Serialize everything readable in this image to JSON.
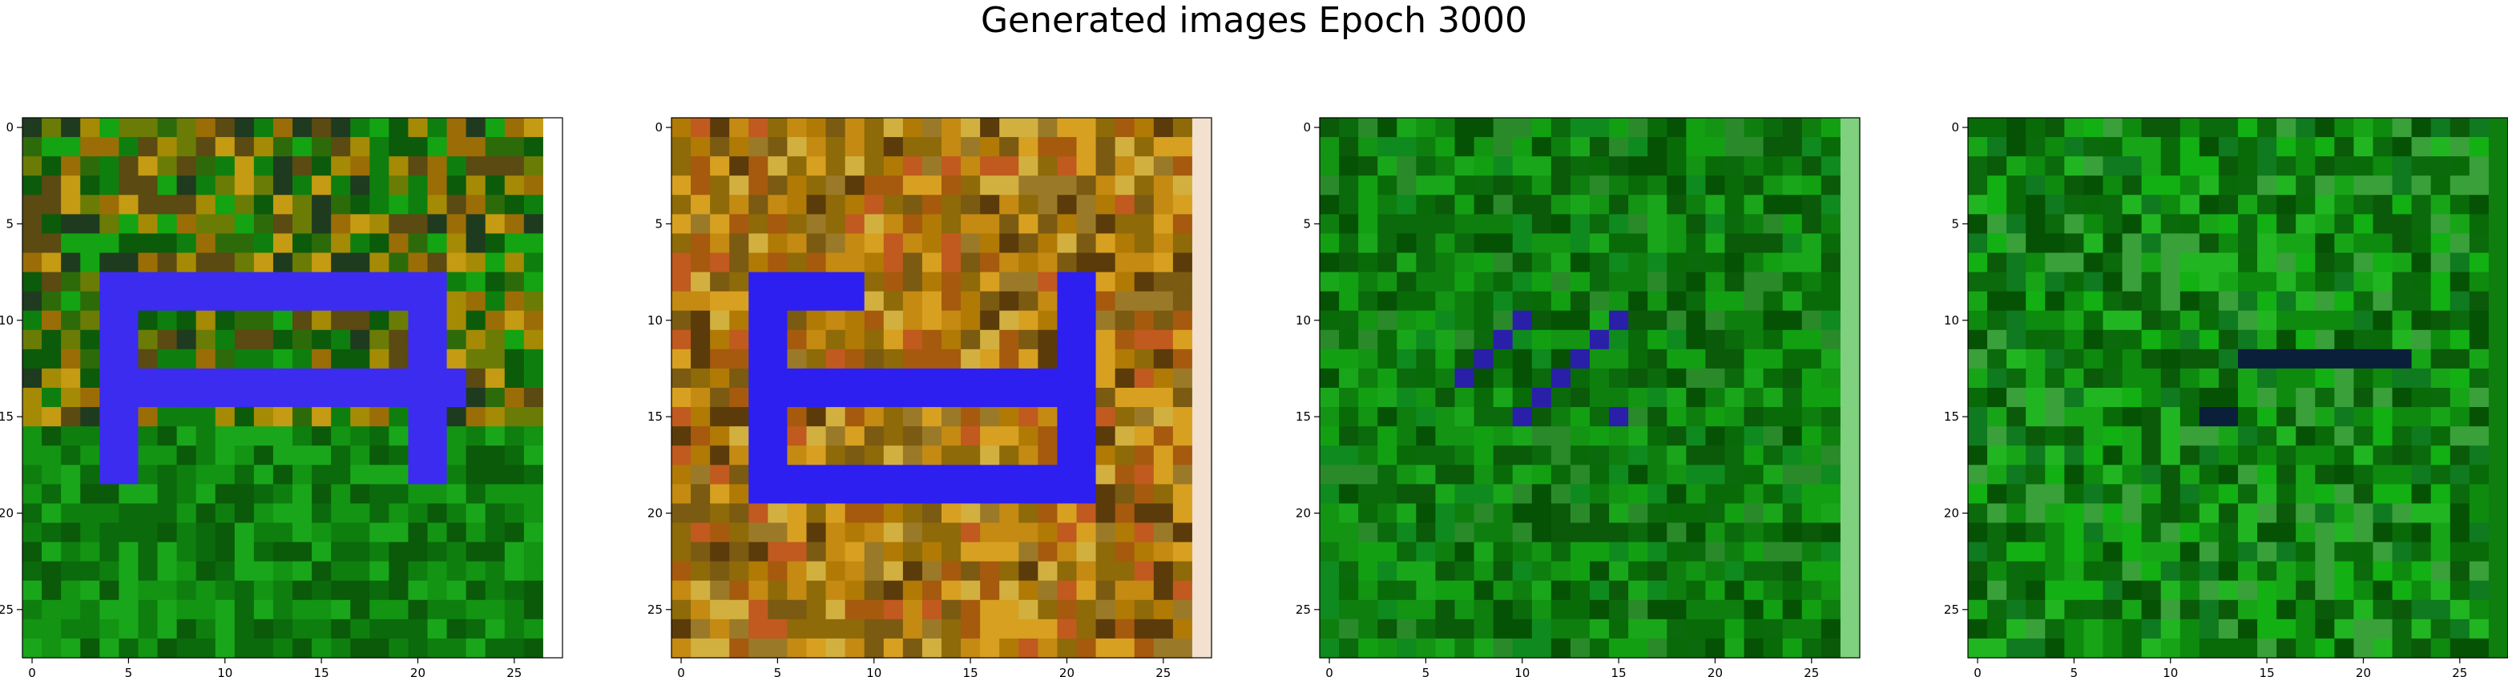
{
  "figure": {
    "title": "Generated images Epoch 3000"
  },
  "chart_data": [
    {
      "type": "heatmap",
      "grid_size": [
        28,
        28
      ],
      "xlim": [
        -0.5,
        27.5
      ],
      "ylim": [
        27.5,
        -0.5
      ],
      "x_ticks": [
        0,
        5,
        10,
        15,
        20,
        25
      ],
      "y_ticks": [
        0,
        5,
        10,
        15,
        20,
        25
      ],
      "palette": [
        "#0e7f0e",
        "#2d6b0a",
        "#6a7c05",
        "#a58a05",
        "#9b6d06",
        "#c49b12",
        "#5b4a12",
        "#1f3b1f",
        "#13a313",
        "#0b5b0b"
      ],
      "accent_color": "#3b2cf0",
      "right_column_color": "#ffffff",
      "motif": "blue ring on upper-left with olive/orange speckle, green lower half"
    },
    {
      "type": "heatmap",
      "grid_size": [
        28,
        28
      ],
      "xlim": [
        -0.5,
        27.5
      ],
      "ylim": [
        27.5,
        -0.5
      ],
      "x_ticks": [
        0,
        5,
        10,
        15,
        20,
        25
      ],
      "y_ticks": [
        0,
        5,
        10,
        15,
        20,
        25
      ],
      "palette": [
        "#b07a05",
        "#c48a12",
        "#8e6a08",
        "#d8a020",
        "#a65a0e",
        "#7b5a12",
        "#c05a1f",
        "#5b3b0a",
        "#d2b040",
        "#9a7a28"
      ],
      "accent_color": "#2c1ff0",
      "right_column_color": "#f3e0cf",
      "motif": "blue rectangular ring on orange/brown speckle"
    },
    {
      "type": "heatmap",
      "grid_size": [
        28,
        28
      ],
      "xlim": [
        -0.5,
        27.5
      ],
      "ylim": [
        27.5,
        -0.5
      ],
      "x_ticks": [
        0,
        5,
        10,
        15,
        20,
        25
      ],
      "y_ticks": [
        0,
        5,
        10,
        15,
        20,
        25
      ],
      "palette": [
        "#0e7f0e",
        "#0b6a0b",
        "#139413",
        "#0a5a0a",
        "#1aa61a",
        "#0f8a1f",
        "#086b08",
        "#2a8a2a",
        "#055205",
        "#12a012"
      ],
      "accent_color": "#2a1fa8",
      "right_column_color": "#7fd07f",
      "motif": "mostly green speckle with sparse dark/colored pixels"
    },
    {
      "type": "heatmap",
      "grid_size": [
        28,
        28
      ],
      "xlim": [
        -0.5,
        27.5
      ],
      "ylim": [
        27.5,
        -0.5
      ],
      "x_ticks": [
        0,
        5,
        10,
        15,
        20,
        25
      ],
      "y_ticks": [
        0,
        5,
        10,
        15,
        20,
        25
      ],
      "palette": [
        "#0e8a0e",
        "#0b6a0b",
        "#17a517",
        "#0a5a0a",
        "#22b522",
        "#0f7a1f",
        "#086b08",
        "#3aa03a",
        "#055205",
        "#12b012"
      ],
      "accent_color": "#0a1f3a",
      "right_column_color": "#0e7f0e",
      "motif": "mostly green speckle with dark horizontal streaks"
    }
  ]
}
